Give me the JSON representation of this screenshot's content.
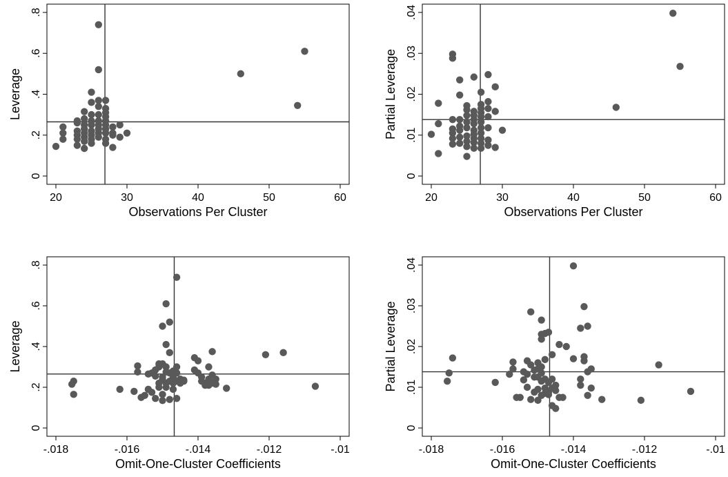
{
  "chart_data": [
    {
      "type": "scatter",
      "xlabel": "Observations Per Cluster",
      "ylabel": "Leverage",
      "xlim": [
        20,
        60
      ],
      "ylim": [
        0,
        0.8
      ],
      "xticks": [
        20,
        30,
        40,
        50,
        60
      ],
      "xtick_labels": [
        "20",
        "30",
        "40",
        "50",
        "60"
      ],
      "yticks": [
        0,
        0.2,
        0.4,
        0.6,
        0.8
      ],
      "ytick_labels": [
        "0",
        ".2",
        ".4",
        ".6",
        ".8"
      ],
      "vline": 26.9,
      "hline": 0.265,
      "grid": false,
      "marker_color": "#595959",
      "points": [
        [
          20,
          0.145
        ],
        [
          21,
          0.24
        ],
        [
          21,
          0.21
        ],
        [
          21,
          0.18
        ],
        [
          23,
          0.27
        ],
        [
          23,
          0.26
        ],
        [
          23,
          0.22
        ],
        [
          23,
          0.2
        ],
        [
          23,
          0.18
        ],
        [
          23,
          0.15
        ],
        [
          24,
          0.315
        ],
        [
          24,
          0.28
        ],
        [
          24,
          0.25
        ],
        [
          24,
          0.23
        ],
        [
          24,
          0.21
        ],
        [
          24,
          0.19
        ],
        [
          24,
          0.17
        ],
        [
          24,
          0.135
        ],
        [
          25,
          0.41
        ],
        [
          25,
          0.36
        ],
        [
          25,
          0.3
        ],
        [
          25,
          0.27
        ],
        [
          25,
          0.25
        ],
        [
          25,
          0.22
        ],
        [
          25,
          0.2
        ],
        [
          25,
          0.18
        ],
        [
          25,
          0.16
        ],
        [
          26,
          0.74
        ],
        [
          26,
          0.52
        ],
        [
          26,
          0.37
        ],
        [
          26,
          0.34
        ],
        [
          26,
          0.3
        ],
        [
          26,
          0.27
        ],
        [
          26,
          0.25
        ],
        [
          26,
          0.23
        ],
        [
          26,
          0.21
        ],
        [
          26,
          0.19
        ],
        [
          27,
          0.37
        ],
        [
          27,
          0.33
        ],
        [
          27,
          0.31
        ],
        [
          27,
          0.29
        ],
        [
          27,
          0.27
        ],
        [
          27,
          0.25
        ],
        [
          27,
          0.23
        ],
        [
          27,
          0.21
        ],
        [
          27,
          0.18
        ],
        [
          27,
          0.16
        ],
        [
          28,
          0.24
        ],
        [
          28,
          0.21
        ],
        [
          28,
          0.2
        ],
        [
          28,
          0.14
        ],
        [
          29,
          0.25
        ],
        [
          29,
          0.19
        ],
        [
          30,
          0.21
        ],
        [
          46,
          0.5
        ],
        [
          54,
          0.345
        ],
        [
          55,
          0.61
        ]
      ]
    },
    {
      "type": "scatter",
      "xlabel": "Observations Per Cluster",
      "ylabel": "Partial Leverage",
      "xlim": [
        20,
        60
      ],
      "ylim": [
        0,
        0.04
      ],
      "xticks": [
        20,
        30,
        40,
        50,
        60
      ],
      "xtick_labels": [
        "20",
        "30",
        "40",
        "50",
        "60"
      ],
      "yticks": [
        0,
        0.01,
        0.02,
        0.03,
        0.04
      ],
      "ytick_labels": [
        "0",
        ".01",
        ".02",
        ".03",
        ".04"
      ],
      "vline": 26.9,
      "hline": 0.0138,
      "grid": false,
      "marker_color": "#595959",
      "points": [
        [
          20,
          0.0102
        ],
        [
          21,
          0.0178
        ],
        [
          21,
          0.0128
        ],
        [
          21,
          0.0055
        ],
        [
          23,
          0.0298
        ],
        [
          23,
          0.0288
        ],
        [
          23,
          0.0138
        ],
        [
          23,
          0.0115
        ],
        [
          23,
          0.0105
        ],
        [
          23,
          0.0092
        ],
        [
          23,
          0.0078
        ],
        [
          24,
          0.0235
        ],
        [
          24,
          0.0198
        ],
        [
          24,
          0.0138
        ],
        [
          24,
          0.0122
        ],
        [
          24,
          0.0112
        ],
        [
          24,
          0.0095
        ],
        [
          24,
          0.008
        ],
        [
          25,
          0.0172
        ],
        [
          25,
          0.0162
        ],
        [
          25,
          0.0148
        ],
        [
          25,
          0.0132
        ],
        [
          25,
          0.0118
        ],
        [
          25,
          0.0098
        ],
        [
          25,
          0.0085
        ],
        [
          25,
          0.0072
        ],
        [
          25,
          0.0048
        ],
        [
          26,
          0.0242
        ],
        [
          26,
          0.0158
        ],
        [
          26,
          0.0148
        ],
        [
          26,
          0.0138
        ],
        [
          26,
          0.0128
        ],
        [
          26,
          0.0112
        ],
        [
          26,
          0.0102
        ],
        [
          26,
          0.0092
        ],
        [
          26,
          0.0082
        ],
        [
          26,
          0.0068
        ],
        [
          27,
          0.0205
        ],
        [
          27,
          0.0175
        ],
        [
          27,
          0.0165
        ],
        [
          27,
          0.0155
        ],
        [
          27,
          0.0145
        ],
        [
          27,
          0.0132
        ],
        [
          27,
          0.0118
        ],
        [
          27,
          0.0105
        ],
        [
          27,
          0.0092
        ],
        [
          27,
          0.008
        ],
        [
          27,
          0.0068
        ],
        [
          28,
          0.0248
        ],
        [
          28,
          0.0182
        ],
        [
          28,
          0.0165
        ],
        [
          28,
          0.0145
        ],
        [
          28,
          0.0118
        ],
        [
          28,
          0.0088
        ],
        [
          28,
          0.0075
        ],
        [
          29,
          0.0218
        ],
        [
          29,
          0.0158
        ],
        [
          29,
          0.007
        ],
        [
          30,
          0.0112
        ],
        [
          46,
          0.0168
        ],
        [
          54,
          0.0398
        ],
        [
          55,
          0.0268
        ]
      ]
    },
    {
      "type": "scatter",
      "xlabel": "Omit-One-Cluster Coefficients",
      "ylabel": "Leverage",
      "xlim": [
        -0.018,
        -0.01
      ],
      "ylim": [
        0,
        0.8
      ],
      "xticks": [
        -0.018,
        -0.016,
        -0.014,
        -0.012,
        -0.01
      ],
      "xtick_labels": [
        "-.018",
        "-.016",
        "-.014",
        "-.012",
        "-.01"
      ],
      "yticks": [
        0,
        0.2,
        0.4,
        0.6,
        0.8
      ],
      "ytick_labels": [
        "0",
        ".2",
        ".4",
        ".6",
        ".8"
      ],
      "vline": -0.01467,
      "hline": 0.265,
      "grid": false,
      "marker_color": "#595959",
      "points": [
        [
          -0.01755,
          0.215
        ],
        [
          -0.0175,
          0.23
        ],
        [
          -0.0175,
          0.165
        ],
        [
          -0.0162,
          0.19
        ],
        [
          -0.0158,
          0.18
        ],
        [
          -0.0157,
          0.305
        ],
        [
          -0.0157,
          0.275
        ],
        [
          -0.0156,
          0.15
        ],
        [
          -0.0155,
          0.16
        ],
        [
          -0.0154,
          0.265
        ],
        [
          -0.0154,
          0.19
        ],
        [
          -0.0153,
          0.27
        ],
        [
          -0.0153,
          0.175
        ],
        [
          -0.0152,
          0.285
        ],
        [
          -0.0152,
          0.255
        ],
        [
          -0.0152,
          0.145
        ],
        [
          -0.0151,
          0.315
        ],
        [
          -0.0151,
          0.3
        ],
        [
          -0.0151,
          0.22
        ],
        [
          -0.0151,
          0.2
        ],
        [
          -0.015,
          0.5
        ],
        [
          -0.015,
          0.315
        ],
        [
          -0.015,
          0.25
        ],
        [
          -0.015,
          0.24
        ],
        [
          -0.015,
          0.165
        ],
        [
          -0.015,
          0.135
        ],
        [
          -0.0149,
          0.61
        ],
        [
          -0.0149,
          0.41
        ],
        [
          -0.0149,
          0.3
        ],
        [
          -0.0149,
          0.275
        ],
        [
          -0.0149,
          0.22
        ],
        [
          -0.0149,
          0.2
        ],
        [
          -0.0148,
          0.52
        ],
        [
          -0.0148,
          0.37
        ],
        [
          -0.0148,
          0.27
        ],
        [
          -0.0148,
          0.23
        ],
        [
          -0.0148,
          0.14
        ],
        [
          -0.0147,
          0.28
        ],
        [
          -0.0147,
          0.25
        ],
        [
          -0.0147,
          0.22
        ],
        [
          -0.0147,
          0.19
        ],
        [
          -0.0146,
          0.74
        ],
        [
          -0.0146,
          0.3
        ],
        [
          -0.0146,
          0.27
        ],
        [
          -0.0146,
          0.23
        ],
        [
          -0.0146,
          0.145
        ],
        [
          -0.0145,
          0.24
        ],
        [
          -0.0145,
          0.22
        ],
        [
          -0.0144,
          0.23
        ],
        [
          -0.0144,
          0.235
        ],
        [
          -0.0141,
          0.345
        ],
        [
          -0.0141,
          0.285
        ],
        [
          -0.014,
          0.33
        ],
        [
          -0.014,
          0.27
        ],
        [
          -0.0139,
          0.25
        ],
        [
          -0.0139,
          0.23
        ],
        [
          -0.0138,
          0.22
        ],
        [
          -0.0138,
          0.21
        ],
        [
          -0.0137,
          0.3
        ],
        [
          -0.0137,
          0.24
        ],
        [
          -0.0137,
          0.21
        ],
        [
          -0.0136,
          0.375
        ],
        [
          -0.0136,
          0.26
        ],
        [
          -0.0136,
          0.22
        ],
        [
          -0.0135,
          0.24
        ],
        [
          -0.0135,
          0.215
        ],
        [
          -0.0132,
          0.195
        ],
        [
          -0.0121,
          0.36
        ],
        [
          -0.0116,
          0.37
        ],
        [
          -0.0107,
          0.205
        ]
      ]
    },
    {
      "type": "scatter",
      "xlabel": "Omit-One-Cluster Coefficients",
      "ylabel": "Partial Leverage",
      "xlim": [
        -0.018,
        -0.01
      ],
      "ylim": [
        0,
        0.04
      ],
      "xticks": [
        -0.018,
        -0.016,
        -0.014,
        -0.012,
        -0.01
      ],
      "xtick_labels": [
        "-.018",
        "-.016",
        "-.014",
        "-.012",
        "-.01"
      ],
      "yticks": [
        0,
        0.01,
        0.02,
        0.03,
        0.04
      ],
      "ytick_labels": [
        "0",
        ".01",
        ".02",
        ".03",
        ".04"
      ],
      "vline": -0.01467,
      "hline": 0.0138,
      "grid": false,
      "marker_color": "#595959",
      "points": [
        [
          -0.01755,
          0.0115
        ],
        [
          -0.0175,
          0.0135
        ],
        [
          -0.0174,
          0.0172
        ],
        [
          -0.0162,
          0.0112
        ],
        [
          -0.0158,
          0.0132
        ],
        [
          -0.0157,
          0.0145
        ],
        [
          -0.0157,
          0.0162
        ],
        [
          -0.0156,
          0.0075
        ],
        [
          -0.0155,
          0.0075
        ],
        [
          -0.0154,
          0.0138
        ],
        [
          -0.0154,
          0.0118
        ],
        [
          -0.0153,
          0.0165
        ],
        [
          -0.0153,
          0.0132
        ],
        [
          -0.0153,
          0.01
        ],
        [
          -0.0152,
          0.0285
        ],
        [
          -0.0152,
          0.0155
        ],
        [
          -0.0152,
          0.007
        ],
        [
          -0.0151,
          0.0142
        ],
        [
          -0.0151,
          0.0125
        ],
        [
          -0.0151,
          0.0088
        ],
        [
          -0.015,
          0.016
        ],
        [
          -0.015,
          0.0145
        ],
        [
          -0.015,
          0.0125
        ],
        [
          -0.015,
          0.0095
        ],
        [
          -0.015,
          0.0068
        ],
        [
          -0.0149,
          0.0265
        ],
        [
          -0.0149,
          0.023
        ],
        [
          -0.0149,
          0.0218
        ],
        [
          -0.0149,
          0.015
        ],
        [
          -0.0149,
          0.0135
        ],
        [
          -0.0149,
          0.0115
        ],
        [
          -0.0149,
          0.008
        ],
        [
          -0.0148,
          0.0232
        ],
        [
          -0.0148,
          0.0168
        ],
        [
          -0.0148,
          0.012
        ],
        [
          -0.0148,
          0.0098
        ],
        [
          -0.0148,
          0.0085
        ],
        [
          -0.0147,
          0.0235
        ],
        [
          -0.0147,
          0.0112
        ],
        [
          -0.0147,
          0.0088
        ],
        [
          -0.0147,
          0.0082
        ],
        [
          -0.0146,
          0.018
        ],
        [
          -0.0146,
          0.012
        ],
        [
          -0.0146,
          0.0098
        ],
        [
          -0.0146,
          0.0055
        ],
        [
          -0.0145,
          0.0105
        ],
        [
          -0.0145,
          0.0092
        ],
        [
          -0.0145,
          0.0048
        ],
        [
          -0.0144,
          0.0075
        ],
        [
          -0.0144,
          0.0205
        ],
        [
          -0.0143,
          0.0075
        ],
        [
          -0.0142,
          0.02
        ],
        [
          -0.014,
          0.0398
        ],
        [
          -0.014,
          0.017
        ],
        [
          -0.0138,
          0.0245
        ],
        [
          -0.0138,
          0.012
        ],
        [
          -0.0138,
          0.0105
        ],
        [
          -0.0137,
          0.0175
        ],
        [
          -0.0137,
          0.0165
        ],
        [
          -0.0137,
          0.0298
        ],
        [
          -0.0136,
          0.025
        ],
        [
          -0.0136,
          0.0138
        ],
        [
          -0.0136,
          0.008
        ],
        [
          -0.0135,
          0.0145
        ],
        [
          -0.0135,
          0.0098
        ],
        [
          -0.0132,
          0.007
        ],
        [
          -0.0121,
          0.0068
        ],
        [
          -0.0116,
          0.0155
        ],
        [
          -0.0107,
          0.009
        ]
      ]
    }
  ]
}
